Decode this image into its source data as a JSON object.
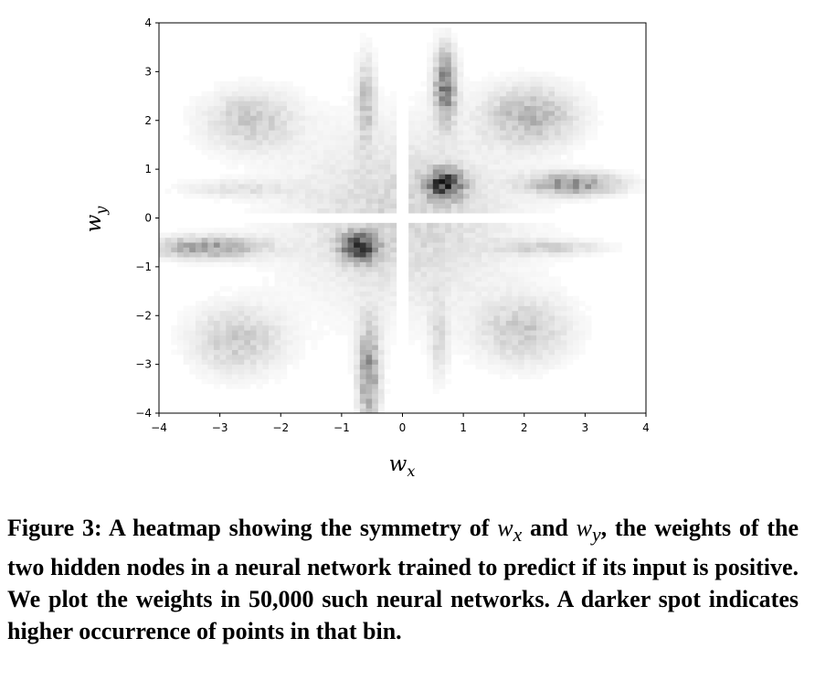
{
  "chart_data": {
    "type": "heatmap",
    "xlabel": "w",
    "xlabel_sub": "x",
    "ylabel": "w",
    "ylabel_sub": "y",
    "xlim": [
      -4,
      4
    ],
    "ylim": [
      -4,
      4
    ],
    "xticks": [
      -4,
      -3,
      -2,
      -1,
      0,
      1,
      2,
      3,
      4
    ],
    "yticks": [
      -4,
      -3,
      -2,
      -1,
      0,
      1,
      2,
      3,
      4
    ],
    "xtick_labels": [
      "−4",
      "−3",
      "−2",
      "−1",
      "0",
      "1",
      "2",
      "3",
      "4"
    ],
    "ytick_labels": [
      "−4",
      "−3",
      "−2",
      "−1",
      "0",
      "1",
      "2",
      "3",
      "4"
    ],
    "colormap": "greys",
    "grid": false,
    "blobs": [
      {
        "x": 0.7,
        "y": 0.7,
        "sx": 0.2,
        "sy": 0.2,
        "intensity": 0.8
      },
      {
        "x": -0.7,
        "y": -0.6,
        "sx": 0.2,
        "sy": 0.2,
        "intensity": 0.8
      },
      {
        "x": 0.7,
        "y": 2.7,
        "sx": 0.12,
        "sy": 0.5,
        "intensity": 0.55
      },
      {
        "x": -0.55,
        "y": -3.2,
        "sx": 0.12,
        "sy": 0.7,
        "intensity": 0.45
      },
      {
        "x": 2.8,
        "y": 0.7,
        "sx": 0.5,
        "sy": 0.15,
        "intensity": 0.45
      },
      {
        "x": -3.2,
        "y": -0.6,
        "sx": 0.6,
        "sy": 0.15,
        "intensity": 0.4
      },
      {
        "x": -2.5,
        "y": 2.0,
        "sx": 0.5,
        "sy": 0.4,
        "intensity": 0.22
      },
      {
        "x": 2.1,
        "y": 2.1,
        "sx": 0.5,
        "sy": 0.4,
        "intensity": 0.3
      },
      {
        "x": -2.7,
        "y": -2.5,
        "sx": 0.5,
        "sy": 0.45,
        "intensity": 0.22
      },
      {
        "x": 2.0,
        "y": -2.3,
        "sx": 0.5,
        "sy": 0.45,
        "intensity": 0.22
      },
      {
        "x": -2.7,
        "y": 0.6,
        "sx": 0.6,
        "sy": 0.12,
        "intensity": 0.12
      },
      {
        "x": 2.4,
        "y": -0.6,
        "sx": 0.6,
        "sy": 0.1,
        "intensity": 0.18
      },
      {
        "x": -0.6,
        "y": 2.4,
        "sx": 0.1,
        "sy": 0.6,
        "intensity": 0.25
      },
      {
        "x": 0.6,
        "y": -2.4,
        "sx": 0.1,
        "sy": 0.6,
        "intensity": 0.15
      },
      {
        "x": 0.0,
        "y": 0.0,
        "sx": 1.2,
        "sy": 1.2,
        "intensity": 0.18
      }
    ]
  },
  "caption": {
    "prefix": "Figure 3: A heatmap showing the symmetry of ",
    "w1": "w",
    "w1_sub": "x",
    "and": " and ",
    "w2": "w",
    "w2_sub": "y",
    "suffix": ", the weights of the two hidden nodes in a neural network trained to predict if its input is positive. We plot the weights in 50,000 such neural networks. A darker spot indicates higher occurrence of points in that bin."
  }
}
